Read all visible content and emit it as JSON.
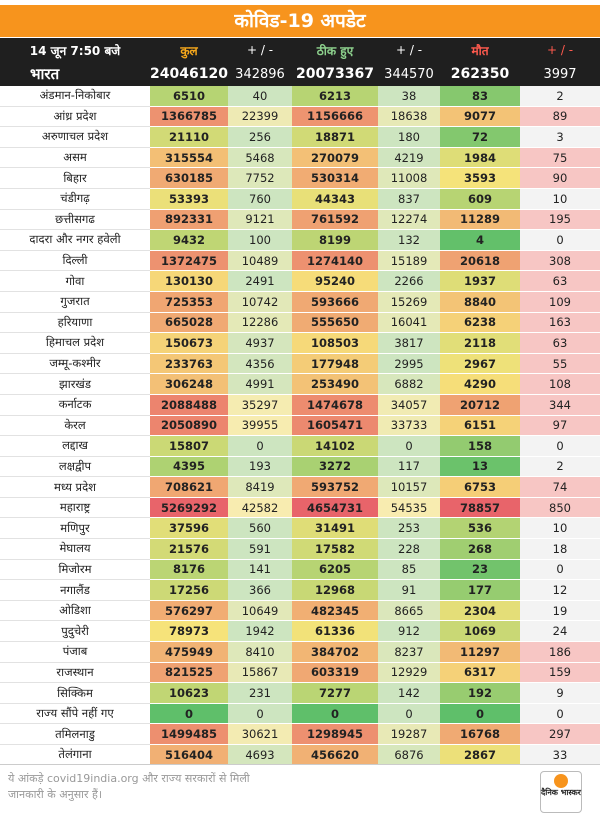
{
  "title": "कोविड-19 अपडेट",
  "header": {
    "date": "14 जून 7:50 बजे",
    "total": "कुल",
    "total_delta": "+ / -",
    "recovered": "ठीक हुए",
    "recovered_delta": "+ / -",
    "deaths": "मौत",
    "deaths_delta": "+ / -"
  },
  "india": {
    "name": "भारत",
    "total": "24046120",
    "total_delta": "342896",
    "recovered": "20073367",
    "recovered_delta": "344570",
    "deaths": "262350",
    "deaths_delta": "3997"
  },
  "states": [
    {
      "name": "अंडमान-निकोबार",
      "total": "6510",
      "total_delta": "40",
      "recovered": "6213",
      "recovered_delta": "38",
      "deaths": "83",
      "deaths_delta": "2"
    },
    {
      "name": "आंध्र प्रदेश",
      "total": "1366785",
      "total_delta": "22399",
      "recovered": "1156666",
      "recovered_delta": "18638",
      "deaths": "9077",
      "deaths_delta": "89"
    },
    {
      "name": "अरुणाचल प्रदेश",
      "total": "21110",
      "total_delta": "256",
      "recovered": "18871",
      "recovered_delta": "180",
      "deaths": "72",
      "deaths_delta": "3"
    },
    {
      "name": "असम",
      "total": "315554",
      "total_delta": "5468",
      "recovered": "270079",
      "recovered_delta": "4219",
      "deaths": "1984",
      "deaths_delta": "75"
    },
    {
      "name": "बिहार",
      "total": "630185",
      "total_delta": "7752",
      "recovered": "530314",
      "recovered_delta": "11008",
      "deaths": "3593",
      "deaths_delta": "90"
    },
    {
      "name": "चंडीगढ़",
      "total": "53393",
      "total_delta": "760",
      "recovered": "44343",
      "recovered_delta": "837",
      "deaths": "609",
      "deaths_delta": "10"
    },
    {
      "name": "छत्तीसगढ",
      "total": "892331",
      "total_delta": "9121",
      "recovered": "761592",
      "recovered_delta": "12274",
      "deaths": "11289",
      "deaths_delta": "195"
    },
    {
      "name": "दादरा और नगर हवेली",
      "total": "9432",
      "total_delta": "100",
      "recovered": "8199",
      "recovered_delta": "132",
      "deaths": "4",
      "deaths_delta": "0"
    },
    {
      "name": "दिल्ली",
      "total": "1372475",
      "total_delta": "10489",
      "recovered": "1274140",
      "recovered_delta": "15189",
      "deaths": "20618",
      "deaths_delta": "308"
    },
    {
      "name": "गोवा",
      "total": "130130",
      "total_delta": "2491",
      "recovered": "95240",
      "recovered_delta": "2266",
      "deaths": "1937",
      "deaths_delta": "63"
    },
    {
      "name": "गुजरात",
      "total": "725353",
      "total_delta": "10742",
      "recovered": "593666",
      "recovered_delta": "15269",
      "deaths": "8840",
      "deaths_delta": "109"
    },
    {
      "name": "हरियाणा",
      "total": "665028",
      "total_delta": "12286",
      "recovered": "555650",
      "recovered_delta": "16041",
      "deaths": "6238",
      "deaths_delta": "163"
    },
    {
      "name": "हिमाचल प्रदेश",
      "total": "150673",
      "total_delta": "4937",
      "recovered": "108503",
      "recovered_delta": "3817",
      "deaths": "2118",
      "deaths_delta": "63"
    },
    {
      "name": "जम्मू-कश्मीर",
      "total": "233763",
      "total_delta": "4356",
      "recovered": "177948",
      "recovered_delta": "2995",
      "deaths": "2967",
      "deaths_delta": "55"
    },
    {
      "name": "झारखंड",
      "total": "306248",
      "total_delta": "4991",
      "recovered": "253490",
      "recovered_delta": "6882",
      "deaths": "4290",
      "deaths_delta": "108"
    },
    {
      "name": "कर्नाटक",
      "total": "2088488",
      "total_delta": "35297",
      "recovered": "1474678",
      "recovered_delta": "34057",
      "deaths": "20712",
      "deaths_delta": "344"
    },
    {
      "name": "केरल",
      "total": "2050890",
      "total_delta": "39955",
      "recovered": "1605471",
      "recovered_delta": "33733",
      "deaths": "6151",
      "deaths_delta": "97"
    },
    {
      "name": "लद्दाख",
      "total": "15807",
      "total_delta": "0",
      "recovered": "14102",
      "recovered_delta": "0",
      "deaths": "158",
      "deaths_delta": "0"
    },
    {
      "name": "लक्षद्वीप",
      "total": "4395",
      "total_delta": "193",
      "recovered": "3272",
      "recovered_delta": "117",
      "deaths": "13",
      "deaths_delta": "2"
    },
    {
      "name": "मध्य प्रदेश",
      "total": "708621",
      "total_delta": "8419",
      "recovered": "593752",
      "recovered_delta": "10157",
      "deaths": "6753",
      "deaths_delta": "74"
    },
    {
      "name": "महाराष्ट्र",
      "total": "5269292",
      "total_delta": "42582",
      "recovered": "4654731",
      "recovered_delta": "54535",
      "deaths": "78857",
      "deaths_delta": "850"
    },
    {
      "name": "मणिपुर",
      "total": "37596",
      "total_delta": "560",
      "recovered": "31491",
      "recovered_delta": "253",
      "deaths": "536",
      "deaths_delta": "10"
    },
    {
      "name": "मेघालय",
      "total": "21576",
      "total_delta": "591",
      "recovered": "17582",
      "recovered_delta": "228",
      "deaths": "268",
      "deaths_delta": "18"
    },
    {
      "name": "मिजोरम",
      "total": "8176",
      "total_delta": "141",
      "recovered": "6205",
      "recovered_delta": "85",
      "deaths": "23",
      "deaths_delta": "0"
    },
    {
      "name": "नगालैंड",
      "total": "17256",
      "total_delta": "366",
      "recovered": "12968",
      "recovered_delta": "91",
      "deaths": "177",
      "deaths_delta": "12"
    },
    {
      "name": "ओडिशा",
      "total": "576297",
      "total_delta": "10649",
      "recovered": "482345",
      "recovered_delta": "8665",
      "deaths": "2304",
      "deaths_delta": "19"
    },
    {
      "name": "पुदुचेरी",
      "total": "78973",
      "total_delta": "1942",
      "recovered": "61336",
      "recovered_delta": "912",
      "deaths": "1069",
      "deaths_delta": "24"
    },
    {
      "name": "पंजाब",
      "total": "475949",
      "total_delta": "8410",
      "recovered": "384702",
      "recovered_delta": "8237",
      "deaths": "11297",
      "deaths_delta": "186"
    },
    {
      "name": "राजस्थान",
      "total": "821525",
      "total_delta": "15867",
      "recovered": "603319",
      "recovered_delta": "12929",
      "deaths": "6317",
      "deaths_delta": "159"
    },
    {
      "name": "सिक्किम",
      "total": "10623",
      "total_delta": "231",
      "recovered": "7277",
      "recovered_delta": "142",
      "deaths": "192",
      "deaths_delta": "9"
    },
    {
      "name": "राज्य सौंपे नहीं गए",
      "total": "0",
      "total_delta": "0",
      "recovered": "0",
      "recovered_delta": "0",
      "deaths": "0",
      "deaths_delta": "0"
    },
    {
      "name": "तमिलनाडु",
      "total": "1499485",
      "total_delta": "30621",
      "recovered": "1298945",
      "recovered_delta": "19287",
      "deaths": "16768",
      "deaths_delta": "297"
    },
    {
      "name": "तेलंगाना",
      "total": "516404",
      "total_delta": "4693",
      "recovered": "456620",
      "recovered_delta": "6876",
      "deaths": "2867",
      "deaths_delta": "33"
    }
  ],
  "footer": {
    "source": "ये आंकड़े covid19india.org और राज्य सरकारों से मिली जानकारी के अनुसार हैं।",
    "logo_text": "दैनिक भास्कर"
  },
  "colors": {
    "title_bg": "#f7941d",
    "header_bg": "#1f1f1f",
    "heat_low": "#5fbf6a",
    "heat_mid": "#f7e37a",
    "heat_high": "#e8646a",
    "delta_pale_green": "#cde5c0"
  }
}
